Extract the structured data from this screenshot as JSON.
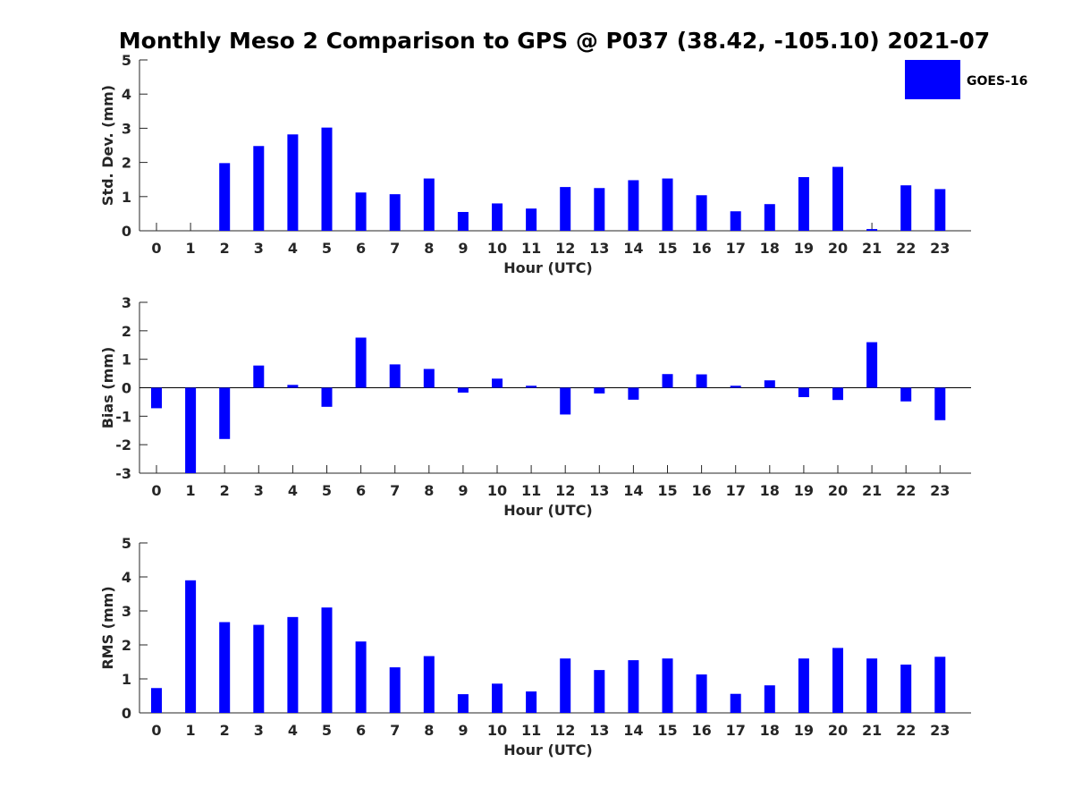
{
  "title": "Monthly Meso 2 Comparison to GPS @ P037 (38.42, -105.10) 2021-07",
  "legend": {
    "label": "GOES-16",
    "color": "#0000ff"
  },
  "chart_data": [
    {
      "type": "bar",
      "name": "stddev",
      "title": "Monthly Meso 2 Comparison to GPS @ P037 (38.42, -105.10) 2021-07",
      "xlabel": "Hour (UTC)",
      "ylabel": "Std. Dev. (mm)",
      "ylim": [
        0,
        5
      ],
      "yticks": [
        0,
        1,
        2,
        3,
        4,
        5
      ],
      "categories": [
        "0",
        "1",
        "2",
        "3",
        "4",
        "5",
        "6",
        "7",
        "8",
        "9",
        "10",
        "11",
        "12",
        "13",
        "14",
        "15",
        "16",
        "17",
        "18",
        "19",
        "20",
        "21",
        "22",
        "23"
      ],
      "series": [
        {
          "name": "GOES-16",
          "color": "#0000ff",
          "values": [
            0,
            0,
            1.98,
            2.48,
            2.82,
            3.02,
            1.12,
            1.07,
            1.53,
            0.55,
            0.8,
            0.65,
            1.28,
            1.25,
            1.48,
            1.53,
            1.04,
            0.57,
            0.78,
            1.57,
            1.87,
            0.05,
            1.33,
            1.22
          ]
        }
      ]
    },
    {
      "type": "bar",
      "name": "bias",
      "xlabel": "Hour (UTC)",
      "ylabel": "Bias (mm)",
      "ylim": [
        -3,
        3
      ],
      "yticks": [
        -3,
        -2,
        -1,
        0,
        1,
        2,
        3
      ],
      "zero_line": true,
      "categories": [
        "0",
        "1",
        "2",
        "3",
        "4",
        "5",
        "6",
        "7",
        "8",
        "9",
        "10",
        "11",
        "12",
        "13",
        "14",
        "15",
        "16",
        "17",
        "18",
        "19",
        "20",
        "21",
        "22",
        "23"
      ],
      "series": [
        {
          "name": "GOES-16",
          "color": "#0000ff",
          "values": [
            -0.72,
            -3.0,
            -1.8,
            0.78,
            0.1,
            -0.67,
            1.76,
            0.82,
            0.66,
            -0.17,
            0.32,
            0.07,
            -0.94,
            -0.2,
            -0.42,
            0.48,
            0.47,
            0.07,
            0.26,
            -0.33,
            -0.43,
            1.6,
            -0.48,
            -1.14
          ]
        }
      ]
    },
    {
      "type": "bar",
      "name": "rms",
      "xlabel": "Hour (UTC)",
      "ylabel": "RMS (mm)",
      "ylim": [
        0,
        5
      ],
      "yticks": [
        0,
        1,
        2,
        3,
        4,
        5
      ],
      "categories": [
        "0",
        "1",
        "2",
        "3",
        "4",
        "5",
        "6",
        "7",
        "8",
        "9",
        "10",
        "11",
        "12",
        "13",
        "14",
        "15",
        "16",
        "17",
        "18",
        "19",
        "20",
        "21",
        "22",
        "23"
      ],
      "series": [
        {
          "name": "GOES-16",
          "color": "#0000ff",
          "values": [
            0.73,
            3.9,
            2.67,
            2.59,
            2.82,
            3.1,
            2.1,
            1.34,
            1.67,
            0.55,
            0.86,
            0.63,
            1.6,
            1.26,
            1.55,
            1.6,
            1.13,
            0.56,
            0.81,
            1.6,
            1.91,
            1.6,
            1.42,
            1.65
          ]
        }
      ]
    }
  ]
}
